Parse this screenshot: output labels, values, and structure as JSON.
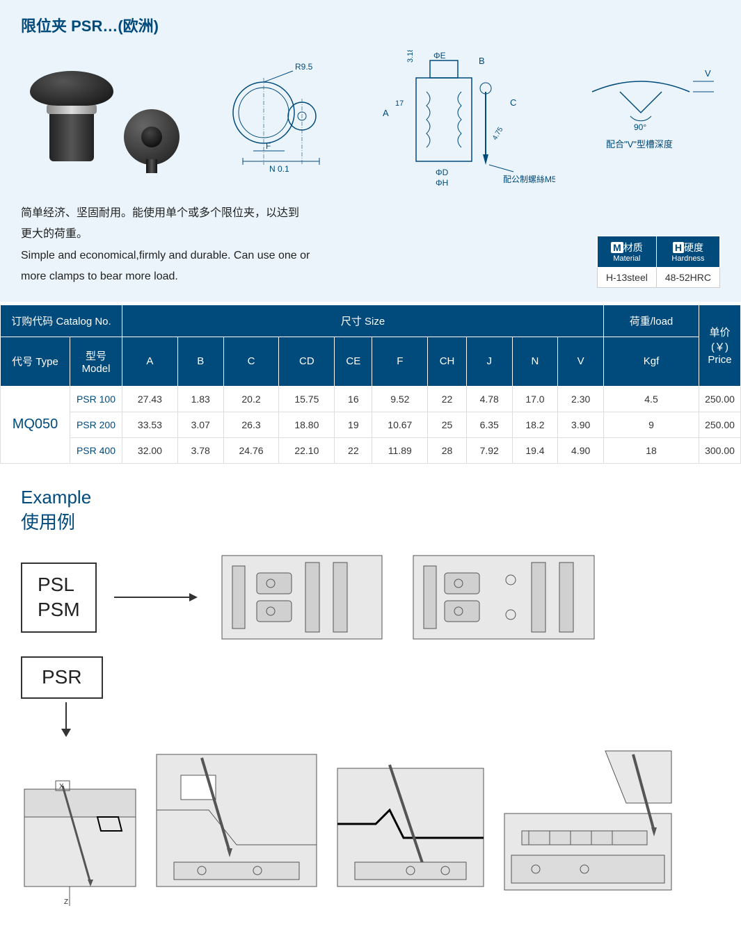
{
  "header": {
    "title": "限位夹 PSR…(欧洲)",
    "desc_cn_1": "简单经济、坚固耐用。能使用单个或多个限位夹，以达到",
    "desc_cn_2": "更大的荷重。",
    "desc_en_1": "Simple and economical,firmly and durable. Can use one or",
    "desc_en_2": "more clamps to bear more load."
  },
  "diagram_labels": {
    "radius": "R9.5",
    "n01": "N 0.1",
    "f": "F",
    "phi_e": "ΦE",
    "phi_d": "ΦD",
    "phi_h": "ΦH",
    "a": "A",
    "b": "B",
    "c": "C",
    "val318": "3.18",
    "val17": "17",
    "val475": "4.75",
    "screw_note": "配公制螺絲M5",
    "v": "V",
    "angle90": "90°",
    "vgroove": "配合\"V\"型槽深度"
  },
  "material_table": {
    "h1_cn": "材质",
    "h1_en": "Material",
    "h1_badge": "M",
    "h2_cn": "硬度",
    "h2_en": "Hardness",
    "h2_badge": "H",
    "v1": "H-13steel",
    "v2": "48-52HRC"
  },
  "spec_table": {
    "header_groups": {
      "catalog": "订购代码 Catalog No.",
      "size": "尺寸 Size",
      "load": "荷重/load",
      "price_cn": "单价",
      "price_cur": "(￥)",
      "price_en": "Price"
    },
    "sub_headers": {
      "type": "代号 Type",
      "model_cn": "型号",
      "model_en": "Model",
      "a": "A",
      "b": "B",
      "c": "C",
      "cd": "CD",
      "ce": "CE",
      "f": "F",
      "ch": "CH",
      "j": "J",
      "n": "N",
      "v": "V",
      "kgf": "Kgf"
    },
    "type_code": "MQ050",
    "rows": [
      {
        "model": "PSR 100",
        "a": "27.43",
        "b": "1.83",
        "c": "20.2",
        "cd": "15.75",
        "ce": "16",
        "f": "9.52",
        "ch": "22",
        "j": "4.78",
        "n": "17.0",
        "v": "2.30",
        "kgf": "4.5",
        "price": "250.00"
      },
      {
        "model": "PSR 200",
        "a": "33.53",
        "b": "3.07",
        "c": "26.3",
        "cd": "18.80",
        "ce": "19",
        "f": "10.67",
        "ch": "25",
        "j": "6.35",
        "n": "18.2",
        "v": "3.90",
        "kgf": "9",
        "price": "250.00"
      },
      {
        "model": "PSR 400",
        "a": "32.00",
        "b": "3.78",
        "c": "24.76",
        "cd": "22.10",
        "ce": "22",
        "f": "11.89",
        "ch": "28",
        "j": "7.92",
        "n": "19.4",
        "v": "4.90",
        "kgf": "18",
        "price": "300.00"
      }
    ]
  },
  "example": {
    "title_en": "Example",
    "title_cn": "使用例",
    "box1_line1": "PSL",
    "box1_line2": "PSM",
    "box2": "PSR"
  },
  "colors": {
    "brand_blue": "#004a7c",
    "light_blue_bg": "#eaf4fa",
    "gray_fill": "#e8e8e8"
  }
}
